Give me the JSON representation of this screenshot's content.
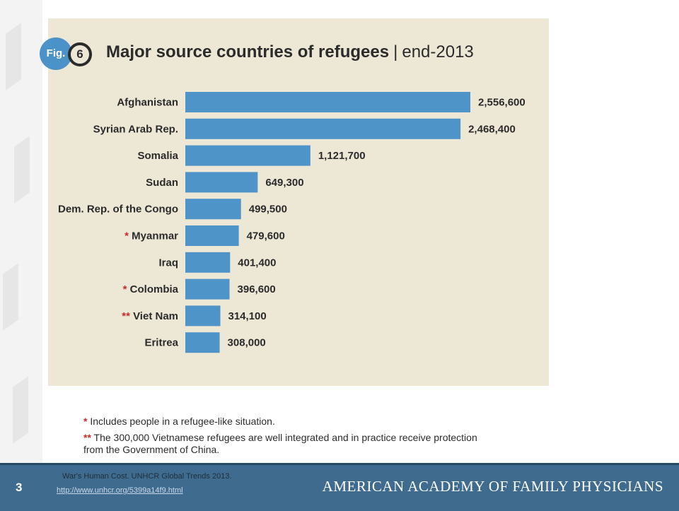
{
  "figure": {
    "badge_label": "Fig.",
    "number": "6"
  },
  "chart_data": {
    "type": "bar",
    "orientation": "horizontal",
    "title": "Major source countries of refugees",
    "subtitle": "end-2013",
    "categories": [
      "Afghanistan",
      "Syrian Arab Rep.",
      "Somalia",
      "Sudan",
      "Dem. Rep. of the Congo",
      "Myanmar",
      "Iraq",
      "Colombia",
      "Viet Nam",
      "Eritrea"
    ],
    "category_markers": [
      "",
      "",
      "",
      "",
      "",
      "*",
      "",
      "*",
      "**",
      ""
    ],
    "values": [
      2556600,
      2468400,
      1121700,
      649300,
      499500,
      479600,
      401400,
      396600,
      314100,
      308000
    ],
    "value_labels": [
      "2,556,600",
      "2,468,400",
      "1,121,700",
      "649,300",
      "499,500",
      "479,600",
      "401,400",
      "396,600",
      "314,100",
      "308,000"
    ],
    "bar_color": "#4f94c8",
    "marker_color": "#cc2a2a",
    "grid": false,
    "legend": "none"
  },
  "footnotes": [
    {
      "marker": "*",
      "text": "Includes people in a refugee-like situation."
    },
    {
      "marker": "**",
      "text": "The 300,000 Vietnamese refugees are well integrated and in practice receive protection from the Government of China."
    }
  ],
  "footer": {
    "slide_number": "3",
    "citation": "War's Human Cost. UNHCR Global Trends 2013.",
    "link": "http://www.unhcr.org/5399a14f9.html",
    "organization": "AMERICAN ACADEMY OF FAMILY PHYSICIANS"
  }
}
